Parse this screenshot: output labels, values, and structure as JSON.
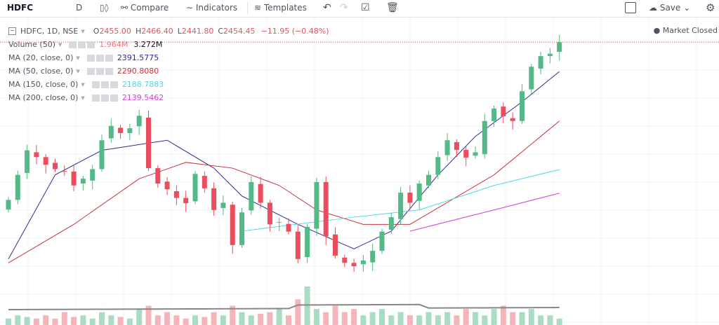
{
  "toolbar": {
    "symbol": "HDFC",
    "interval": "D",
    "compare": "Compare",
    "indicators": "Indicators",
    "templates": "Templates",
    "save": "Save"
  },
  "legend": {
    "title": "HDFC, 1D, NSE",
    "o_label": "O",
    "o": "2455.00",
    "h_label": "H",
    "h": "2466.40",
    "l_label": "L",
    "l": "2441.80",
    "c_label": "C",
    "c": "2454.45",
    "change": "−11.95 (−0.48%)",
    "studies": [
      {
        "name": "Volume (50)",
        "value": "1.964M",
        "value2": "3.272M",
        "color": "#e0797f"
      },
      {
        "name": "MA (20, close, 0)",
        "value": "2391.5775",
        "color": "#2a2f8f"
      },
      {
        "name": "MA (50, close, 0)",
        "value": "2290.8080",
        "color": "#c8323c"
      },
      {
        "name": "MA (150, close, 0)",
        "value": "2188.7883",
        "color": "#4fd8e0"
      },
      {
        "name": "MA (200, close, 0)",
        "value": "2139.5462",
        "color": "#d43fd0"
      }
    ]
  },
  "status": "Market Closed",
  "chart_data": {
    "type": "candlestick",
    "up_color": "#53b987",
    "down_color": "#eb4d5c",
    "closes": [
      2126,
      2178,
      2229,
      2215,
      2199,
      2190,
      2185,
      2156,
      2170,
      2190,
      2250,
      2280,
      2265,
      2275,
      2301,
      2192,
      2160,
      2148,
      2130,
      2119,
      2180,
      2150,
      2105,
      2120,
      2032,
      2100,
      2163,
      2120,
      2075,
      2080,
      2060,
      2003,
      2070,
      2163,
      2050,
      2010,
      1995,
      1988,
      2000,
      2020,
      2060,
      2090,
      2141,
      2120,
      2160,
      2178,
      2215,
      2250,
      2230,
      2214,
      2225,
      2290,
      2316,
      2300,
      2290,
      2352,
      2403,
      2425,
      2430,
      2454
    ],
    "volumes": [
      2,
      3,
      2.5,
      2,
      3,
      2,
      4,
      2.5,
      3,
      2,
      4,
      3,
      2.5,
      2,
      5,
      6,
      3,
      4,
      3,
      2,
      3,
      2.5,
      4,
      3,
      6,
      4,
      3,
      3.5,
      4,
      5,
      3,
      8,
      12,
      5,
      4,
      6,
      4,
      5,
      3,
      4,
      5,
      3,
      4,
      3,
      3,
      4,
      3,
      4,
      3,
      5,
      4,
      3,
      5,
      6,
      4,
      4,
      5,
      3,
      3,
      2
    ],
    "ma": [
      {
        "name": "MA20",
        "color": "#2a2f8f",
        "points": [
          [
            0,
            2003
          ],
          [
            5,
            2178
          ],
          [
            10,
            2229
          ],
          [
            17,
            2250
          ],
          [
            22,
            2192
          ],
          [
            25,
            2134
          ],
          [
            31,
            2075
          ],
          [
            37,
            2024
          ],
          [
            41,
            2061
          ],
          [
            46,
            2178
          ],
          [
            50,
            2258
          ],
          [
            55,
            2330
          ],
          [
            59,
            2393
          ]
        ]
      },
      {
        "name": "MA50",
        "color": "#c8323c",
        "points": [
          [
            0,
            1995
          ],
          [
            7,
            2075
          ],
          [
            14,
            2170
          ],
          [
            19,
            2204
          ],
          [
            24,
            2192
          ],
          [
            29,
            2156
          ],
          [
            33,
            2105
          ],
          [
            38,
            2075
          ],
          [
            43,
            2075
          ],
          [
            52,
            2178
          ],
          [
            59,
            2290
          ]
        ]
      },
      {
        "name": "MA150",
        "color": "#4fd8e0",
        "points": [
          [
            25,
            2061
          ],
          [
            37,
            2090
          ],
          [
            44,
            2105
          ],
          [
            52,
            2156
          ],
          [
            59,
            2189
          ]
        ]
      },
      {
        "name": "MA200",
        "color": "#d43fd0",
        "points": [
          [
            43,
            2061
          ],
          [
            52,
            2105
          ],
          [
            59,
            2140
          ]
        ]
      }
    ]
  }
}
